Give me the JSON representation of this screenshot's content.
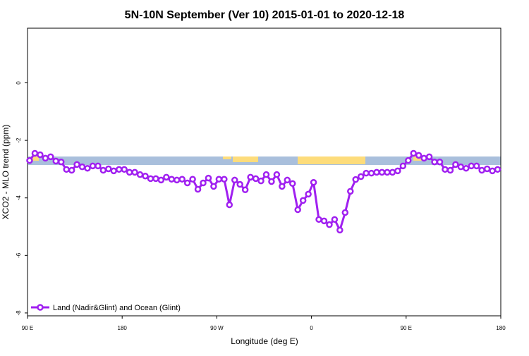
{
  "chart_data": {
    "type": "line",
    "title": "5N-10N September (Ver 10)   2015-01-01 to 2020-12-18",
    "x_label": "Longitude (deg E)",
    "y_label": "XCO2 - MLO trend (ppm)",
    "xlim": [
      90,
      540
    ],
    "ylim": [
      -8.1,
      1.9
    ],
    "xticks": [
      {
        "value": 90,
        "label": "90 E"
      },
      180,
      {
        "value": 270,
        "label": "90 W"
      },
      {
        "value": 360,
        "label": "0"
      },
      {
        "value": 450,
        "label": "90 E"
      },
      {
        "value": 540,
        "label": "180"
      }
    ],
    "yticks": [
      0,
      -2,
      -4,
      -6,
      -8
    ],
    "legend": "bottom-left",
    "x": [
      92,
      97,
      102,
      107,
      112,
      117,
      122,
      127,
      132,
      137,
      142,
      147,
      152,
      157,
      162,
      167,
      172,
      177,
      182,
      187,
      192,
      197,
      202,
      207,
      212,
      217,
      222,
      227,
      232,
      237,
      242,
      247,
      252,
      257,
      262,
      267,
      272,
      277,
      282,
      287,
      292,
      297,
      302,
      307,
      312,
      317,
      322,
      327,
      332,
      337,
      342,
      347,
      352,
      357,
      362,
      367,
      372,
      377,
      382,
      387,
      392,
      397,
      402,
      407,
      412,
      417,
      422,
      427,
      432,
      437,
      442,
      447,
      452,
      457,
      462,
      467,
      472,
      477,
      482,
      487,
      492,
      497,
      502,
      507,
      512,
      517,
      522,
      527,
      532,
      537
    ],
    "series": [
      {
        "name": "Land (Nadir&Glint) and Ocean (Glint)",
        "color": "#a020f0",
        "values": [
          -2.7,
          -2.45,
          -2.5,
          -2.62,
          -2.57,
          -2.72,
          -2.75,
          -3.01,
          -3.04,
          -2.84,
          -2.92,
          -2.97,
          -2.89,
          -2.89,
          -3.04,
          -2.99,
          -3.06,
          -3.01,
          -3.01,
          -3.11,
          -3.11,
          -3.19,
          -3.24,
          -3.33,
          -3.33,
          -3.38,
          -3.28,
          -3.35,
          -3.38,
          -3.35,
          -3.48,
          -3.35,
          -3.7,
          -3.48,
          -3.31,
          -3.6,
          -3.35,
          -3.35,
          -4.24,
          -3.38,
          -3.53,
          -3.72,
          -3.28,
          -3.33,
          -3.41,
          -3.19,
          -3.43,
          -3.19,
          -3.6,
          -3.38,
          -3.5,
          -4.41,
          -4.09,
          -3.87,
          -3.46,
          -4.75,
          -4.8,
          -4.93,
          -4.75,
          -5.12,
          -4.51,
          -3.77,
          -3.36,
          -3.26,
          -3.14,
          -3.14,
          -3.11,
          -3.11,
          -3.11,
          -3.11,
          -3.06,
          -2.89,
          -2.7,
          -2.45,
          -2.52,
          -2.62,
          -2.57,
          -2.75,
          -2.75,
          -3.01,
          -3.04,
          -2.84,
          -2.92,
          -2.97,
          -2.89,
          -2.89,
          -3.04,
          -2.99,
          -3.06,
          -3.01
        ]
      }
    ]
  }
}
